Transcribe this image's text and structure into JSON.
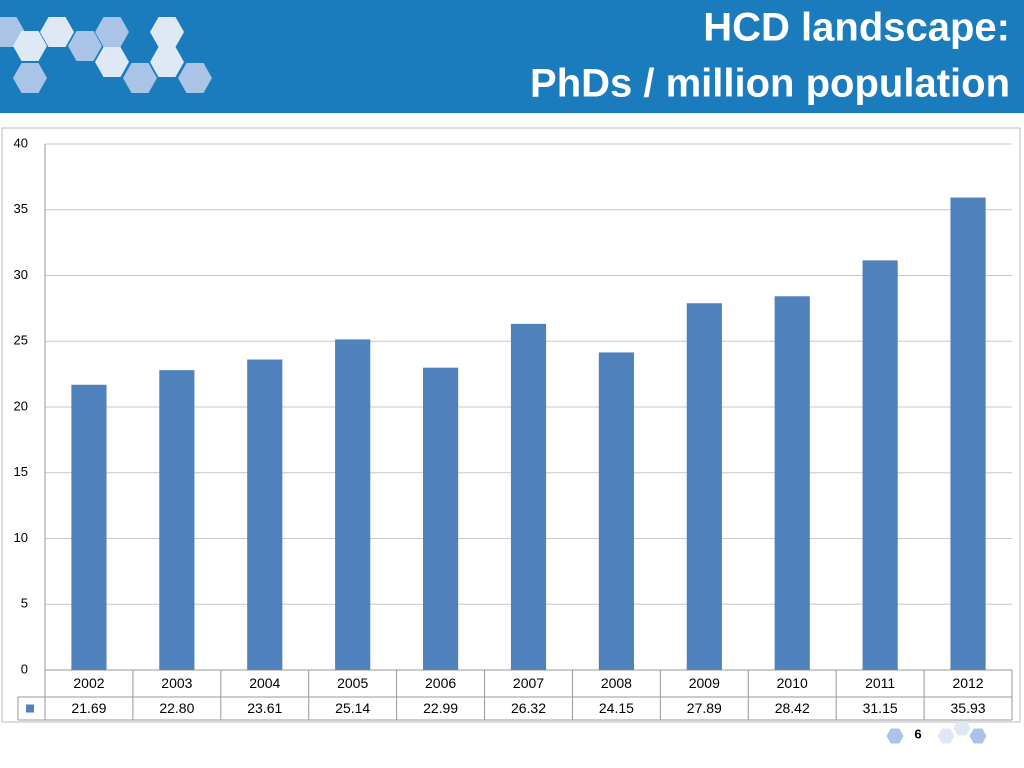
{
  "chart_data": {
    "type": "bar",
    "title": "HCD landscape:",
    "subtitle": "PhDs / million population",
    "categories": [
      "2002",
      "2003",
      "2004",
      "2005",
      "2006",
      "2007",
      "2008",
      "2009",
      "2010",
      "2011",
      "2012"
    ],
    "values": [
      21.69,
      22.8,
      23.61,
      25.14,
      22.99,
      26.32,
      24.15,
      27.89,
      28.42,
      31.15,
      35.93
    ],
    "value_labels": [
      "21.69",
      "22.80",
      "23.61",
      "25.14",
      "22.99",
      "26.32",
      "24.15",
      "27.89",
      "28.42",
      "31.15",
      "35.93"
    ],
    "color": "#4f81bd",
    "ylim": [
      0,
      40
    ],
    "yticks": [
      0,
      5,
      10,
      15,
      20,
      25,
      30,
      35,
      40
    ],
    "grid": true
  },
  "slide": {
    "page_number": "6"
  }
}
